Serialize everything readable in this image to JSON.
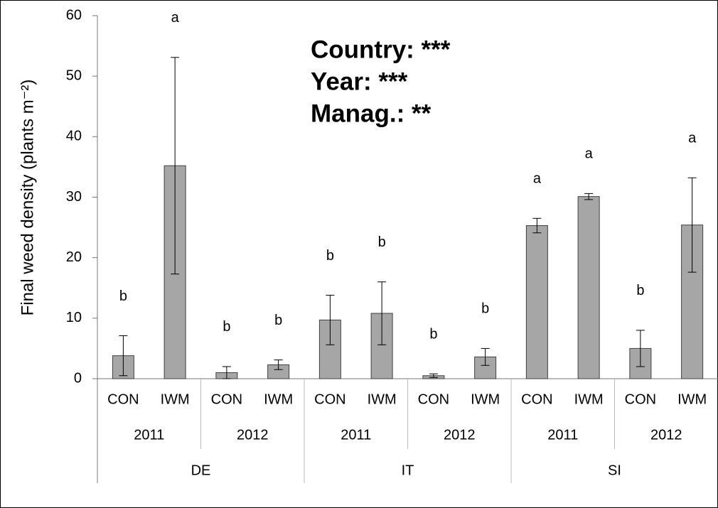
{
  "chart_data": {
    "type": "bar",
    "ylabel": "Final weed density (plants m⁻²)",
    "annotations": [
      "Country: ***",
      "Year: ***",
      "Manag.: **"
    ],
    "categories": [
      "CON",
      "IWM",
      "CON",
      "IWM",
      "CON",
      "IWM",
      "CON",
      "IWM",
      "CON",
      "IWM",
      "CON",
      "IWM"
    ],
    "years": [
      "2011",
      "2012",
      "2011",
      "2012",
      "2011",
      "2012"
    ],
    "countries": [
      "DE",
      "IT",
      "SI"
    ],
    "values": [
      3.8,
      35.2,
      1.0,
      2.3,
      9.7,
      10.8,
      0.5,
      3.6,
      25.3,
      30.1,
      5.0,
      25.4
    ],
    "errors": [
      3.3,
      17.9,
      1.0,
      0.8,
      4.1,
      5.2,
      0.3,
      1.4,
      1.2,
      0.5,
      3.0,
      7.8
    ],
    "letters": [
      "b",
      "a",
      "b",
      "b",
      "b",
      "b",
      "b",
      "b",
      "a",
      "a",
      "b",
      "a"
    ],
    "color": "#a6a6a6",
    "ylim": [
      0,
      60
    ],
    "yticks": [
      0,
      10,
      20,
      30,
      40,
      50,
      60
    ],
    "grid": false
  }
}
